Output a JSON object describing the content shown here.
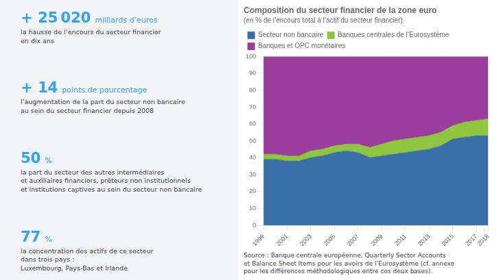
{
  "chart_data": {
    "type": "area",
    "title": "Composition du secteur financier de la zone euro",
    "subtitle": "(en % de l’encours total à l’actif du secteur financier)",
    "x": [
      1999,
      2000,
      2001,
      2002,
      2003,
      2004,
      2005,
      2006,
      2007,
      2008,
      2009,
      2010,
      2011,
      2012,
      2013,
      2014,
      2015,
      2016,
      2017,
      2018
    ],
    "series": [
      {
        "name": "Secteur non bancaire",
        "color": "#3a6fa8",
        "values": [
          39,
          39,
          38,
          38,
          40,
          41,
          43,
          44,
          43,
          40,
          41,
          42,
          43,
          44,
          45,
          47,
          51,
          52,
          53,
          53
        ]
      },
      {
        "name": "Banques centrales de l’Eurosystème",
        "color": "#8ec63f",
        "values": [
          3,
          3,
          3,
          3,
          4,
          4,
          4,
          4,
          5,
          6,
          7,
          8,
          8,
          8,
          8,
          8,
          8,
          9,
          9,
          10
        ]
      },
      {
        "name": "Banques et OPC monétaires",
        "color": "#9b3d9b",
        "values": [
          58,
          58,
          59,
          59,
          56,
          55,
          53,
          52,
          52,
          54,
          52,
          50,
          49,
          48,
          47,
          45,
          41,
          39,
          38,
          37
        ]
      }
    ],
    "stacked": true,
    "xlim": [
      1999,
      2018
    ],
    "xticks": [
      1999,
      2001,
      2003,
      2005,
      2007,
      2009,
      2011,
      2013,
      2015,
      2017,
      2018
    ],
    "ylim": [
      0,
      100
    ],
    "yticks": [
      0,
      10,
      20,
      30,
      40,
      50,
      60,
      70,
      80,
      90,
      100
    ],
    "grid": true,
    "legend": "top",
    "annotations": [
      {
        "big": "+ 25 020",
        "unit": "milliards d’euros",
        "desc": "la hausse de l’encours du secteur financier\nen dix ans"
      },
      {
        "big": "+ 14",
        "unit": "points de pourcentage",
        "desc": "l’augmentation de la part du secteur non bancaire\nau sein du secteur financier depuis 2008"
      },
      {
        "big": "50",
        "unit": "%",
        "desc": "la part du secteur des autres intermédiaires\net auxiliaires financiers, prêteurs non institutionnels\net institutions captives au sein du secteur non bancaire"
      },
      {
        "big": "77",
        "unit": "%",
        "desc": "la concentration des actifs de ce secteur\ndans trois pays :\nLuxembourg, Pays-Bas et Irlande"
      }
    ],
    "source": "Source : Banque centrale européenne, Quarterly Sector Accounts\net Balance Sheet Items pour les avoirs de l’Eurosystème (cf. annexe\npour les différences méthodologiques entre ces deux bases)."
  }
}
